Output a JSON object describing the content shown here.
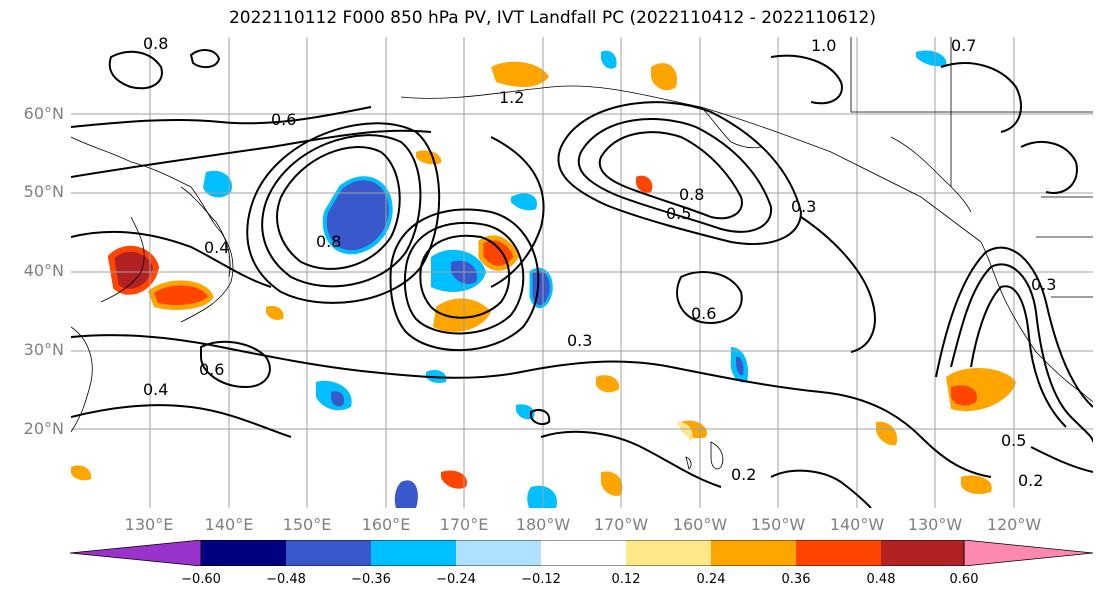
{
  "title": "2022110112 F000 850 hPa PV, IVT Landfall PC (2022110412 - 2022110612)",
  "lat_labels": [
    "60°N",
    "50°N",
    "40°N",
    "30°N",
    "20°N"
  ],
  "lon_labels": [
    "130°E",
    "140°E",
    "150°E",
    "160°E",
    "170°E",
    "180°W",
    "170°W",
    "160°W",
    "150°W",
    "140°W",
    "130°W",
    "120°W"
  ],
  "colorbar": {
    "colors": [
      "#9933cc",
      "#000080",
      "#3858cc",
      "#00bfff",
      "#b0e0ff",
      "#ffffff",
      "#ffe88a",
      "#ffa500",
      "#ff4500",
      "#b22222",
      "#ff88b0"
    ],
    "ticks": [
      "−0.60",
      "−0.48",
      "−0.36",
      "−0.24",
      "−0.12",
      "0.12",
      "0.24",
      "0.36",
      "0.48",
      "0.60"
    ]
  },
  "contour_labels": [
    "0.8",
    "1.0",
    "0.7",
    "0.6",
    "0.5",
    "0.3",
    "0.4",
    "0.2",
    "1.2"
  ]
}
